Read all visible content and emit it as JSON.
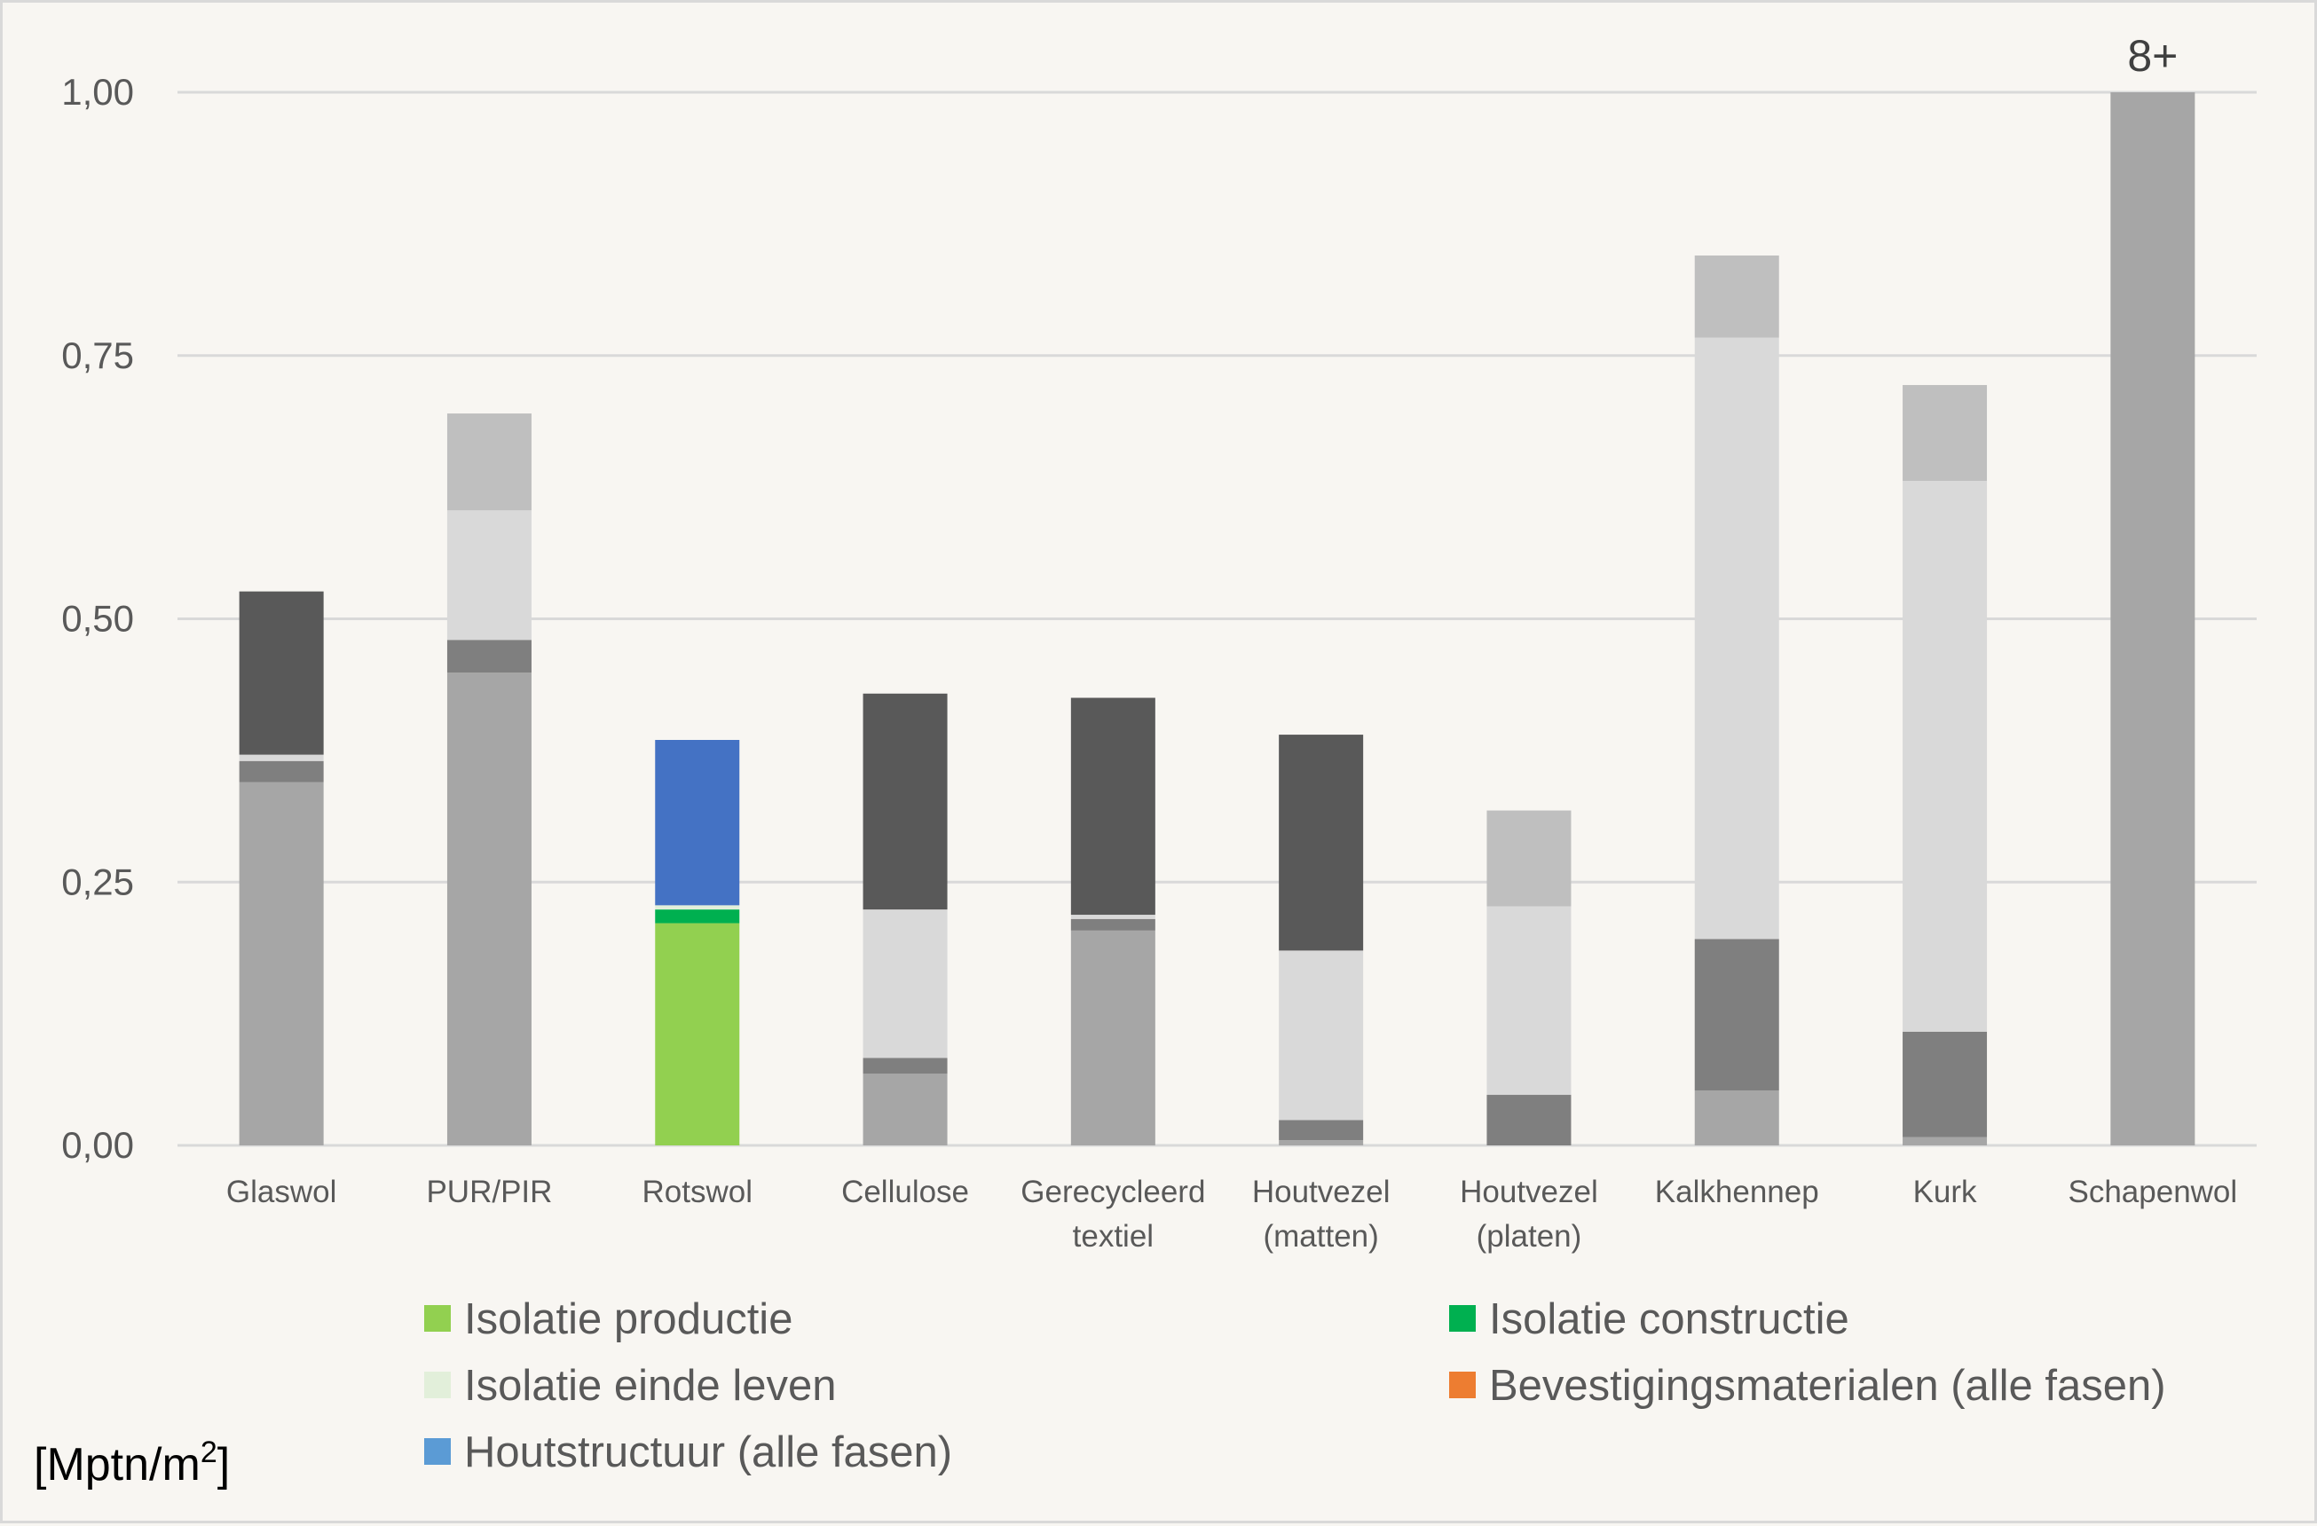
{
  "chart_data": {
    "type": "bar",
    "stacked": true,
    "categories": [
      "Glaswol",
      "PUR/PIR",
      "Rotswol",
      "Cellulose",
      "Gerecycleerd textiel",
      "Houtvezel (matten)",
      "Houtvezel (platen)",
      "Kalkhennep",
      "Kurk",
      "Schapenwol"
    ],
    "category_lines": [
      [
        "Glaswol"
      ],
      [
        "PUR/PIR"
      ],
      [
        "Rotswol"
      ],
      [
        "Cellulose"
      ],
      [
        "Gerecycleerd",
        "textiel"
      ],
      [
        "Houtvezel",
        "(matten)"
      ],
      [
        "Houtvezel",
        "(platen)"
      ],
      [
        "Kalkhennep"
      ],
      [
        "Kurk"
      ],
      [
        "Schapenwol"
      ]
    ],
    "series": [
      {
        "name": "Isolatie productie",
        "color": "#92d050",
        "values": [
          0.345,
          0.449,
          0.211,
          0.068,
          0.204,
          0.005,
          0.0,
          0.052,
          0.008,
          1.0
        ],
        "display_colors": [
          "#a6a6a6",
          "#a6a6a6",
          "#92d050",
          "#a6a6a6",
          "#a6a6a6",
          "#a6a6a6",
          "#a6a6a6",
          "#a6a6a6",
          "#a6a6a6",
          "#a6a6a6"
        ]
      },
      {
        "name": "Isolatie constructie",
        "color": "#00b050",
        "values": [
          0.02,
          0.031,
          0.013,
          0.015,
          0.011,
          0.019,
          0.048,
          0.144,
          0.1,
          0.0
        ],
        "display_colors": [
          "#7f7f7f",
          "#7f7f7f",
          "#00b050",
          "#7f7f7f",
          "#7f7f7f",
          "#7f7f7f",
          "#7f7f7f",
          "#7f7f7f",
          "#7f7f7f",
          "#7f7f7f"
        ]
      },
      {
        "name": "Isolatie einde leven",
        "color": "#e2efda",
        "values": [
          0.006,
          0.123,
          0.004,
          0.141,
          0.004,
          0.161,
          0.179,
          0.571,
          0.523,
          0.0
        ],
        "display_colors": [
          "#d9d9d9",
          "#d9d9d9",
          "#e2efda",
          "#d9d9d9",
          "#d9d9d9",
          "#d9d9d9",
          "#d9d9d9",
          "#d9d9d9",
          "#d9d9d9",
          "#d9d9d9"
        ]
      },
      {
        "name": "Bevestigingsmaterialen (alle fasen)",
        "color": "#ed7d31",
        "values": [
          0.0,
          0.092,
          0.0,
          0.0,
          0.0,
          0.0,
          0.091,
          0.078,
          0.091,
          0.0
        ],
        "display_colors": [
          "#bfbfbf",
          "#bfbfbf",
          "#ed7d31",
          "#bfbfbf",
          "#bfbfbf",
          "#bfbfbf",
          "#bfbfbf",
          "#bfbfbf",
          "#bfbfbf",
          "#bfbfbf"
        ]
      },
      {
        "name": "Houtstructuur (alle fasen)",
        "color": "#5b9bd5",
        "values": [
          0.155,
          0.0,
          0.157,
          0.205,
          0.206,
          0.205,
          0.0,
          0.0,
          0.0,
          0.0
        ],
        "display_colors": [
          "#595959",
          "#595959",
          "#4472c4",
          "#595959",
          "#595959",
          "#595959",
          "#595959",
          "#595959",
          "#595959",
          "#595959"
        ]
      }
    ],
    "ylim": [
      0,
      1.0
    ],
    "yticks": [
      "0,00",
      "0,25",
      "0,50",
      "0,75",
      "1,00"
    ],
    "ytick_values": [
      0,
      0.25,
      0.5,
      0.75,
      1.0
    ],
    "grid": true,
    "legend_position": "bottom",
    "annotations": [
      {
        "category": "Schapenwol",
        "text": "8+"
      }
    ],
    "unit_label": {
      "base": "[Mptn/m",
      "sup": "2",
      "suffix": "]"
    }
  }
}
